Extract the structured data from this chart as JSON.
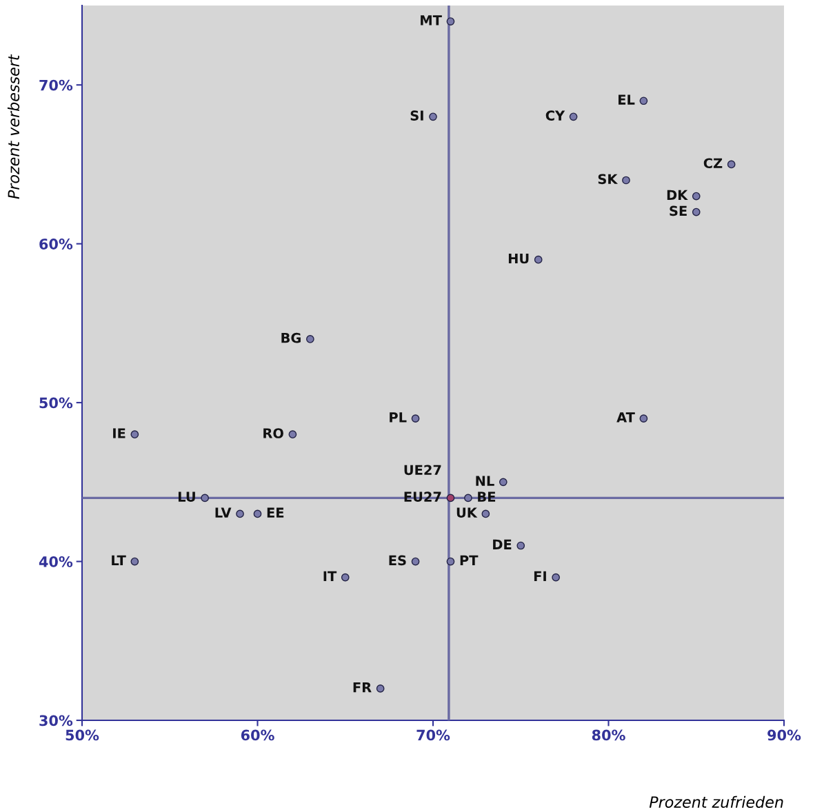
{
  "chart_data": {
    "type": "scatter",
    "xlabel": "Prozent zufrieden",
    "ylabel": "Prozent verbessert",
    "x": [
      71,
      70,
      82,
      78,
      87,
      81,
      85,
      85,
      76,
      63,
      69,
      82,
      53,
      62,
      74,
      57,
      71,
      72,
      59,
      60,
      73,
      75,
      53,
      69,
      71,
      65,
      77,
      67
    ],
    "values": [
      74,
      68,
      69,
      68,
      65,
      64,
      63,
      62,
      59,
      54,
      49,
      49,
      48,
      48,
      45,
      44,
      44,
      44,
      43,
      43,
      43,
      41,
      40,
      40,
      40,
      39,
      39,
      32
    ],
    "colors": [
      "#7a7aaa",
      "#7a7aaa",
      "#7a7aaa",
      "#7a7aaa",
      "#7a7aaa",
      "#7a7aaa",
      "#7a7aaa",
      "#7a7aaa",
      "#7a7aaa",
      "#7a7aaa",
      "#7a7aaa",
      "#7a7aaa",
      "#7a7aaa",
      "#7a7aaa",
      "#7a7aaa",
      "#7a7aaa",
      "#a0406a",
      "#7a7aaa",
      "#7a7aaa",
      "#7a7aaa",
      "#7a7aaa",
      "#7a7aaa",
      "#7a7aaa",
      "#7a7aaa",
      "#7a7aaa",
      "#7a7aaa",
      "#7a7aaa",
      "#7a7aaa"
    ],
    "marker": "circle",
    "annotations": [
      {
        "text": "MT",
        "x": 71,
        "y": 74
      },
      {
        "text": "SI",
        "x": 70,
        "y": 68
      },
      {
        "text": "EL",
        "x": 82,
        "y": 69
      },
      {
        "text": "CY",
        "x": 78,
        "y": 68
      },
      {
        "text": "CZ",
        "x": 87,
        "y": 65
      },
      {
        "text": "SK",
        "x": 81,
        "y": 64
      },
      {
        "text": "DK",
        "x": 85,
        "y": 63
      },
      {
        "text": "SE",
        "x": 85,
        "y": 62
      },
      {
        "text": "HU",
        "x": 76,
        "y": 59
      },
      {
        "text": "BG",
        "x": 63,
        "y": 54
      },
      {
        "text": "PL",
        "x": 69,
        "y": 49
      },
      {
        "text": "AT",
        "x": 82,
        "y": 49
      },
      {
        "text": "IE",
        "x": 53,
        "y": 48
      },
      {
        "text": "RO",
        "x": 62,
        "y": 48
      },
      {
        "text": "NL",
        "x": 74,
        "y": 45
      },
      {
        "text": "LU",
        "x": 57,
        "y": 44
      },
      {
        "text": "UE27",
        "x": 71,
        "y": 44
      },
      {
        "text": "EU27",
        "x": 71,
        "y": 44
      },
      {
        "text": "BE",
        "x": 72,
        "y": 44
      },
      {
        "text": "LV",
        "x": 59,
        "y": 43
      },
      {
        "text": "EE",
        "x": 60,
        "y": 43
      },
      {
        "text": "UK",
        "x": 73,
        "y": 43
      },
      {
        "text": "DE",
        "x": 75,
        "y": 41
      },
      {
        "text": "LT",
        "x": 53,
        "y": 40
      },
      {
        "text": "ES",
        "x": 69,
        "y": 40
      },
      {
        "text": "PT",
        "x": 71,
        "y": 40
      },
      {
        "text": "IT",
        "x": 65,
        "y": 39
      },
      {
        "text": "FI",
        "x": 77,
        "y": 39
      },
      {
        "text": "FR",
        "x": 67,
        "y": 32
      }
    ],
    "ref_lines": [
      {
        "axis": "x",
        "value": 70.9,
        "color": "#6b6ba3"
      },
      {
        "axis": "y",
        "value": 44,
        "color": "#6b6ba3"
      }
    ],
    "xlim": [
      50,
      90
    ],
    "ylim": [
      30,
      75
    ],
    "xticks": [
      {
        "value": 50,
        "label": "50%"
      },
      {
        "value": 60,
        "label": "60%"
      },
      {
        "value": 70,
        "label": "70%"
      },
      {
        "value": 80,
        "label": "80%"
      },
      {
        "value": 90,
        "label": "90%"
      }
    ],
    "yticks": [
      {
        "value": 30,
        "label": "30%"
      },
      {
        "value": 40,
        "label": "40%"
      },
      {
        "value": 50,
        "label": "50%"
      },
      {
        "value": 60,
        "label": "60%"
      },
      {
        "value": 70,
        "label": "70%"
      }
    ],
    "grid": false,
    "legend": false
  }
}
